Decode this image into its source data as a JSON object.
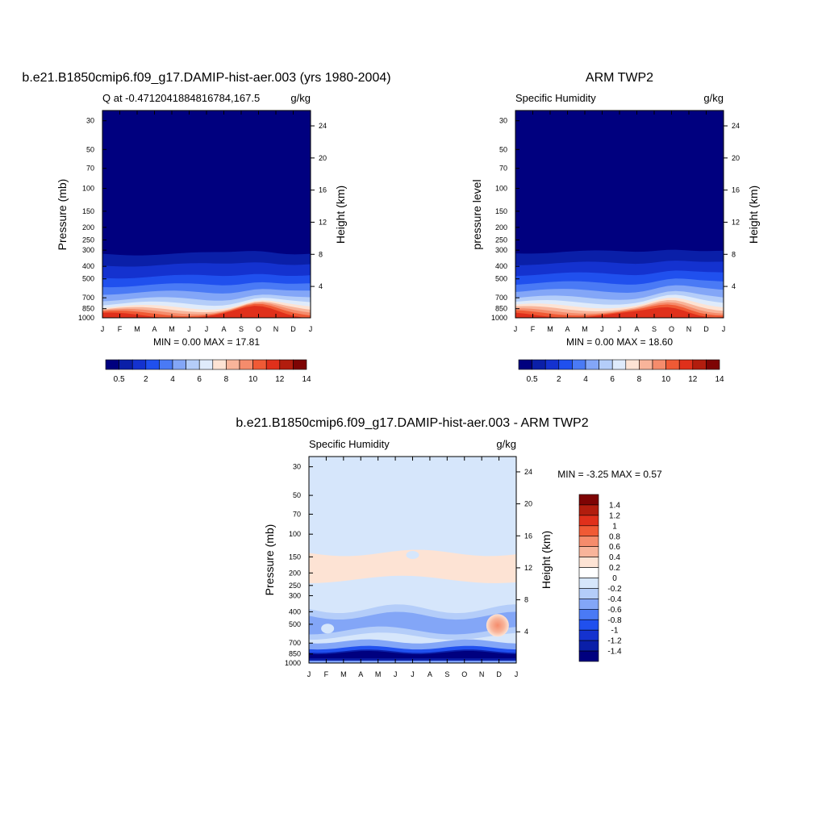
{
  "chart_data": [
    {
      "type": "heatmap",
      "title": "b.e21.B1850cmip6.f09_g17.DAMIP-hist-aer.003 (yrs 1980-2004)",
      "left_label": "Q at -0.47120418848167­84,167.5",
      "units": "g/kg",
      "ylabel": "Pressure (mb)",
      "ylabel_right": "Height (km)",
      "x_ticks": [
        "J",
        "F",
        "M",
        "A",
        "M",
        "J",
        "J",
        "A",
        "S",
        "O",
        "N",
        "D",
        "J"
      ],
      "y_ticks": [
        30,
        50,
        70,
        100,
        150,
        200,
        250,
        300,
        400,
        500,
        700,
        850,
        1000
      ],
      "y_right_ticks": [
        24,
        20,
        16,
        12,
        8,
        4
      ],
      "ylim": [
        1000,
        25
      ],
      "minmax_text": "MIN =   0.00 MAX =  17.81",
      "bands_pressure": [
        320,
        390,
        480,
        560,
        640,
        720,
        780,
        830,
        865,
        895,
        925,
        960
      ],
      "colorbar_labels": [
        "0.5",
        "2",
        "4",
        "6",
        "8",
        "10",
        "12",
        "14"
      ],
      "colorbar_colors": [
        "#00007f",
        "#0a1fa8",
        "#1432cf",
        "#2050ee",
        "#4a7af5",
        "#83a6f7",
        "#b4cdf9",
        "#dfebfb",
        "#fde3d4",
        "#f8b49a",
        "#f58c6c",
        "#f05a35",
        "#e0301b",
        "#b21d0e",
        "#7e0404"
      ]
    },
    {
      "type": "heatmap",
      "title": "ARM TWP2",
      "left_label": "Specific Humidity",
      "units": "g/kg",
      "ylabel": "pressure level",
      "ylabel_right": "Height (km)",
      "x_ticks": [
        "J",
        "F",
        "M",
        "A",
        "M",
        "J",
        "J",
        "A",
        "S",
        "O",
        "N",
        "D",
        "J"
      ],
      "y_ticks": [
        30,
        50,
        70,
        100,
        150,
        200,
        250,
        300,
        400,
        500,
        700,
        850,
        1000
      ],
      "y_right_ticks": [
        24,
        20,
        16,
        12,
        8,
        4
      ],
      "ylim": [
        1000,
        25
      ],
      "minmax_text": "MIN =   0.00 MAX =  18.60",
      "bands_pressure": [
        310,
        380,
        460,
        540,
        620,
        700,
        760,
        810,
        850,
        885,
        915,
        950
      ],
      "colorbar_labels": [
        "0.5",
        "2",
        "4",
        "6",
        "8",
        "10",
        "12",
        "14"
      ],
      "colorbar_colors": [
        "#00007f",
        "#0a1fa8",
        "#1432cf",
        "#2050ee",
        "#4a7af5",
        "#83a6f7",
        "#b4cdf9",
        "#dfebfb",
        "#fde3d4",
        "#f8b49a",
        "#f58c6c",
        "#f05a35",
        "#e0301b",
        "#b21d0e",
        "#7e0404"
      ]
    },
    {
      "type": "heatmap",
      "title": "b.e21.B1850cmip6.f09_g17.DAMIP-hist-aer.003 - ARM TWP2",
      "left_label": "Specific Humidity",
      "units": "g/kg",
      "ylabel": "Pressure (mb)",
      "ylabel_right": "Height (km)",
      "x_ticks": [
        "J",
        "F",
        "M",
        "A",
        "M",
        "J",
        "J",
        "A",
        "S",
        "O",
        "N",
        "D",
        "J"
      ],
      "y_ticks": [
        30,
        50,
        70,
        100,
        150,
        200,
        250,
        300,
        400,
        500,
        700,
        850,
        1000
      ],
      "y_right_ticks": [
        24,
        20,
        16,
        12,
        8,
        4
      ],
      "ylim": [
        1000,
        25
      ],
      "minmax_text": "MIN =  -3.25 MAX =   0.57",
      "colorbar_labels": [
        "1.4",
        "1.2",
        "1",
        "0.8",
        "0.6",
        "0.4",
        "0.2",
        "0",
        "-0.2",
        "-0.4",
        "-0.6",
        "-0.8",
        "-1",
        "-1.2",
        "-1.4"
      ],
      "colorbar_colors": [
        "#7e0404",
        "#b21d0e",
        "#e0301b",
        "#f05a35",
        "#f58c6c",
        "#f8b49a",
        "#fde3d4",
        "#ffffff",
        "#d6e6fb",
        "#b4cdf9",
        "#83a6f7",
        "#4a7af5",
        "#2050ee",
        "#1432cf",
        "#0a1fa8",
        "#00007f"
      ]
    }
  ]
}
